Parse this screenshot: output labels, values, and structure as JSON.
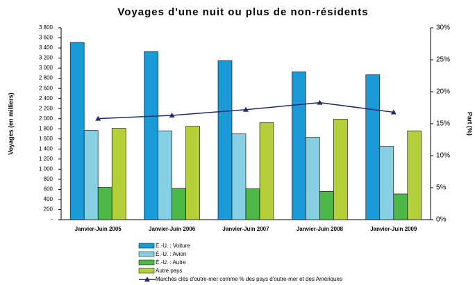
{
  "chart_data": {
    "type": "bar",
    "title": "Voyages d'une nuit ou plus de non-résidents",
    "ylabel": "Voyages (en milliers)",
    "y2label": "Part (%)",
    "categories": [
      "Janvier-Juin 2005",
      "Janvier-Juin 2006",
      "Janvier-Juin 2007",
      "Janvier-Juin 2008",
      "Janvier-Juin 2009"
    ],
    "series": [
      {
        "name": "É.-U. : Voiture",
        "color": "#1a9ad6",
        "values": [
          3510,
          3330,
          3150,
          2930,
          2870
        ]
      },
      {
        "name": "É.-U. : Avion",
        "color": "#87cfe3",
        "values": [
          1770,
          1760,
          1700,
          1630,
          1450
        ]
      },
      {
        "name": "É.-U. : Autre",
        "color": "#4db848",
        "values": [
          640,
          620,
          610,
          560,
          510
        ]
      },
      {
        "name": "Autre pays",
        "color": "#b5cf3a",
        "values": [
          1810,
          1850,
          1920,
          1990,
          1760
        ]
      },
      {
        "name": "Marchés clés d'outre-mer comme % des pays d'outre-mer et des Amériques",
        "color": "#1f2a6e",
        "type": "line",
        "axis": "y2",
        "values": [
          15.8,
          16.3,
          17.2,
          18.3,
          16.8
        ]
      }
    ],
    "ylim": [
      0,
      3800
    ],
    "yticks": [
      {
        "value": 0,
        "label": "-"
      },
      200,
      400,
      600,
      800,
      {
        "value": 1000,
        "label": "1 000"
      },
      {
        "value": 1200,
        "label": "1 200"
      },
      {
        "value": 1400,
        "label": "1 400"
      },
      {
        "value": 1600,
        "label": "1 600"
      },
      {
        "value": 1800,
        "label": "1 800"
      },
      {
        "value": 2000,
        "label": "2 000"
      },
      {
        "value": 2200,
        "label": "2 200"
      },
      {
        "value": 2400,
        "label": "2 400"
      },
      {
        "value": 2600,
        "label": "2 600"
      },
      {
        "value": 2800,
        "label": "2 800"
      },
      {
        "value": 3000,
        "label": "3 000"
      },
      {
        "value": 3200,
        "label": "3 200"
      },
      {
        "value": 3400,
        "label": "3 400"
      },
      {
        "value": 3600,
        "label": "3 600"
      },
      {
        "value": 3800,
        "label": "3 800"
      }
    ],
    "y2lim": [
      0,
      30
    ],
    "y2ticks": [
      {
        "value": 0,
        "label": "0%"
      },
      {
        "value": 5,
        "label": "5%"
      },
      {
        "value": 10,
        "label": "10%"
      },
      {
        "value": 15,
        "label": "15%"
      },
      {
        "value": 20,
        "label": "20%"
      },
      {
        "value": 25,
        "label": "25%"
      },
      {
        "value": 30,
        "label": "30%"
      }
    ],
    "legend": "bottom"
  }
}
